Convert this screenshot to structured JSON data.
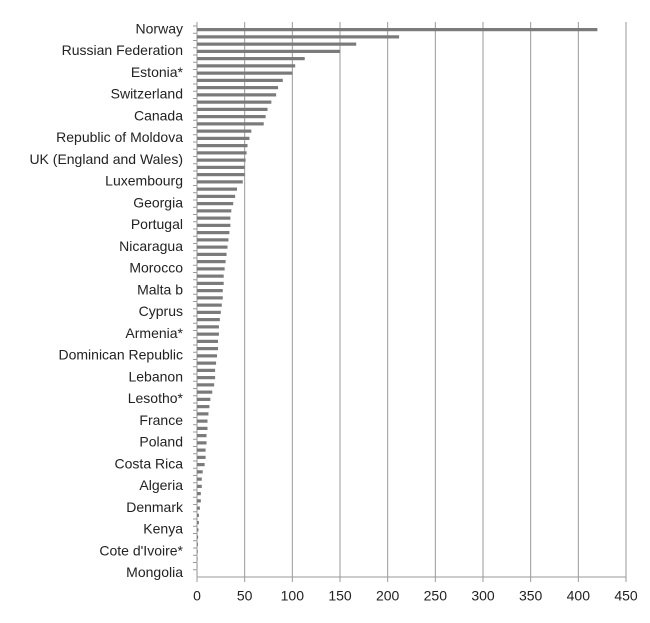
{
  "chart_data": {
    "type": "hbar",
    "categories": [
      "Norway",
      null,
      null,
      "Russian Federation",
      null,
      null,
      "Estonia*",
      null,
      null,
      "Switzerland",
      null,
      null,
      "Canada",
      null,
      null,
      "Republic of Moldova",
      null,
      null,
      "UK (England and Wales)",
      null,
      null,
      "Luxembourg",
      null,
      null,
      "Georgia",
      null,
      null,
      "Portugal",
      null,
      null,
      "Nicaragua",
      null,
      null,
      "Morocco",
      null,
      null,
      "Malta b",
      null,
      null,
      "Cyprus",
      null,
      null,
      "Armenia*",
      null,
      null,
      "Dominican Republic",
      null,
      null,
      "Lebanon",
      null,
      null,
      "Lesotho*",
      null,
      null,
      "France",
      null,
      null,
      "Poland",
      null,
      null,
      "Costa Rica",
      null,
      null,
      "Algeria",
      null,
      null,
      "Denmark",
      null,
      null,
      "Kenya",
      null,
      null,
      "Cote d'Ivoire*",
      null,
      null,
      "Mongolia"
    ],
    "values": [
      420,
      212,
      167,
      150,
      113,
      103,
      100,
      90,
      85,
      83,
      78,
      74,
      72,
      70,
      57,
      55,
      53,
      52,
      51,
      50,
      50,
      48,
      42,
      40,
      38,
      36,
      35,
      35,
      34,
      33,
      32,
      31,
      30,
      29,
      28,
      28,
      27,
      27,
      26,
      25,
      24,
      23,
      23,
      22,
      22,
      21,
      20,
      19,
      19,
      18,
      16,
      14,
      13,
      12,
      11,
      11,
      10,
      10,
      9,
      9,
      8,
      6,
      5,
      5,
      4,
      4,
      3,
      2,
      2,
      1.5,
      1.2,
      1,
      0.8,
      0.6,
      0.5,
      0.3
    ],
    "color": "#7a7a7a",
    "xlim": [
      0,
      450
    ],
    "xticks": [
      0,
      50,
      100,
      150,
      200,
      250,
      300,
      350,
      400,
      450
    ],
    "grid": true
  }
}
